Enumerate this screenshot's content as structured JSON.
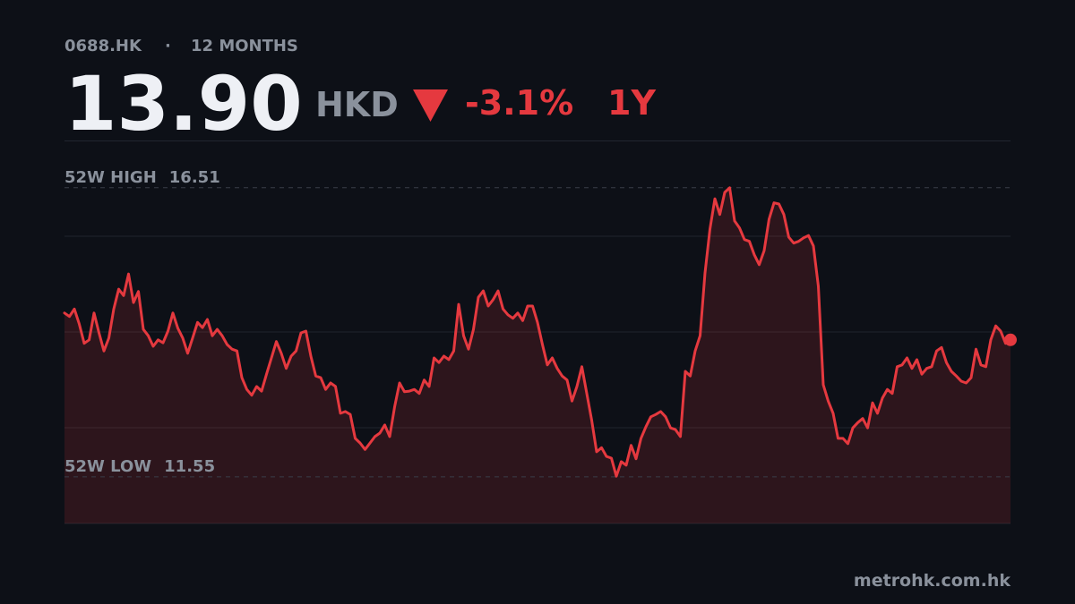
{
  "header": {
    "ticker": "0688.HK",
    "separator": "·",
    "period": "12 MONTHS",
    "price": "13.90",
    "currency": "HKD",
    "change": "-3.1%",
    "range": "1Y"
  },
  "chart_data": {
    "type": "line",
    "color": "#e5393f",
    "ylim": [
      10.75,
      17.32
    ],
    "high_label": "52W HIGH",
    "high": 16.51,
    "low_label": "52W LOW",
    "low": 11.55,
    "values": [
      14.36,
      14.3,
      14.43,
      14.17,
      13.84,
      13.9,
      14.36,
      14.02,
      13.71,
      13.93,
      14.43,
      14.77,
      14.66,
      15.03,
      14.54,
      14.73,
      14.08,
      13.97,
      13.79,
      13.9,
      13.85,
      14.05,
      14.36,
      14.1,
      13.93,
      13.67,
      13.93,
      14.2,
      14.11,
      14.25,
      13.97,
      14.08,
      13.97,
      13.82,
      13.74,
      13.71,
      13.25,
      13.05,
      12.95,
      13.1,
      13.02,
      13.31,
      13.59,
      13.87,
      13.67,
      13.41,
      13.62,
      13.71,
      14.02,
      14.05,
      13.62,
      13.28,
      13.25,
      13.05,
      13.16,
      13.1,
      12.64,
      12.67,
      12.62,
      12.21,
      12.13,
      12.02,
      12.13,
      12.24,
      12.3,
      12.44,
      12.24,
      12.75,
      13.16,
      13.01,
      13.02,
      13.05,
      12.98,
      13.21,
      13.1,
      13.59,
      13.51,
      13.62,
      13.56,
      13.71,
      14.51,
      13.97,
      13.74,
      14.08,
      14.63,
      14.74,
      14.48,
      14.59,
      14.74,
      14.43,
      14.33,
      14.27,
      14.36,
      14.23,
      14.48,
      14.48,
      14.2,
      13.82,
      13.47,
      13.59,
      13.41,
      13.28,
      13.21,
      12.85,
      13.1,
      13.44,
      12.98,
      12.52,
      11.98,
      12.05,
      11.9,
      11.87,
      11.56,
      11.81,
      11.75,
      12.09,
      11.86,
      12.21,
      12.41,
      12.58,
      12.62,
      12.67,
      12.58,
      12.39,
      12.36,
      12.24,
      13.36,
      13.28,
      13.71,
      13.97,
      15.05,
      15.8,
      16.32,
      16.05,
      16.43,
      16.51,
      15.94,
      15.82,
      15.62,
      15.59,
      15.36,
      15.19,
      15.43,
      15.97,
      16.25,
      16.23,
      16.05,
      15.66,
      15.56,
      15.59,
      15.65,
      15.69,
      15.51,
      14.82,
      13.13,
      12.85,
      12.64,
      12.21,
      12.21,
      12.12,
      12.39,
      12.48,
      12.55,
      12.39,
      12.82,
      12.64,
      12.9,
      13.05,
      12.98,
      13.44,
      13.47,
      13.59,
      13.41,
      13.56,
      13.31,
      13.41,
      13.44,
      13.71,
      13.77,
      13.51,
      13.36,
      13.28,
      13.19,
      13.16,
      13.25,
      13.74,
      13.47,
      13.44,
      13.9,
      14.14,
      14.05,
      13.84,
      13.9
    ]
  },
  "footer": {
    "source": "metrohk.com.hk"
  }
}
